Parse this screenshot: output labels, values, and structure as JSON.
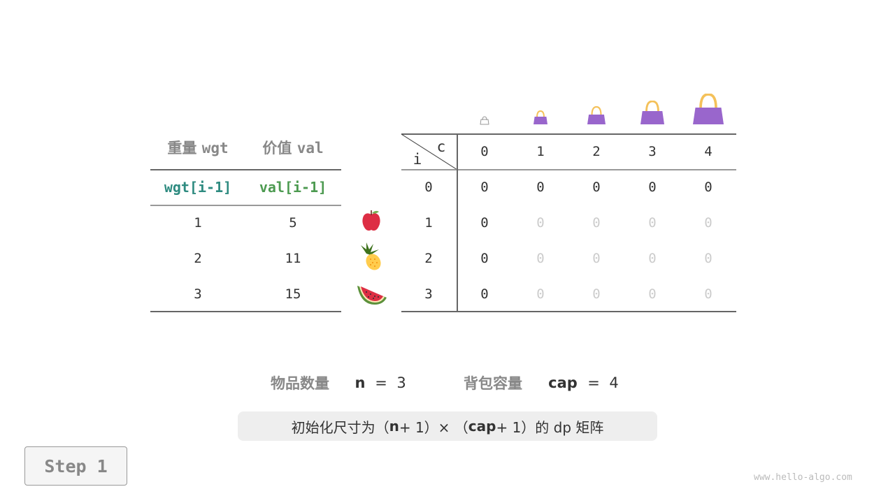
{
  "items_table": {
    "headers": [
      {
        "cn": "重量",
        "code": "wgt"
      },
      {
        "cn": "价值",
        "code": "val"
      }
    ],
    "subheaders": [
      "wgt[i-1]",
      "val[i-1]"
    ],
    "rows": [
      {
        "wgt": "1",
        "val": "5",
        "fruit": "apple-icon"
      },
      {
        "wgt": "2",
        "val": "11",
        "fruit": "pineapple-icon"
      },
      {
        "wgt": "3",
        "val": "15",
        "fruit": "watermelon-icon"
      }
    ],
    "colors": {
      "wgt": "#2e8b80",
      "val": "#4c9a50"
    }
  },
  "dp_table": {
    "corner": {
      "row_label": "i",
      "col_label": "c"
    },
    "col_headers": [
      "0",
      "1",
      "2",
      "3",
      "4"
    ],
    "row_headers": [
      "0",
      "1",
      "2",
      "3"
    ],
    "cells": [
      [
        {
          "v": "0",
          "s": "init"
        },
        {
          "v": "0",
          "s": "init"
        },
        {
          "v": "0",
          "s": "init"
        },
        {
          "v": "0",
          "s": "init"
        },
        {
          "v": "0",
          "s": "init"
        }
      ],
      [
        {
          "v": "0",
          "s": "init"
        },
        {
          "v": "0",
          "s": "empty"
        },
        {
          "v": "0",
          "s": "empty"
        },
        {
          "v": "0",
          "s": "empty"
        },
        {
          "v": "0",
          "s": "empty"
        }
      ],
      [
        {
          "v": "0",
          "s": "init"
        },
        {
          "v": "0",
          "s": "empty"
        },
        {
          "v": "0",
          "s": "empty"
        },
        {
          "v": "0",
          "s": "empty"
        },
        {
          "v": "0",
          "s": "empty"
        }
      ],
      [
        {
          "v": "0",
          "s": "init"
        },
        {
          "v": "0",
          "s": "empty"
        },
        {
          "v": "0",
          "s": "empty"
        },
        {
          "v": "0",
          "s": "empty"
        },
        {
          "v": "0",
          "s": "empty"
        }
      ]
    ],
    "bag_icons": [
      "bag-icon",
      "bag-icon",
      "bag-icon",
      "bag-icon",
      "bag-icon"
    ],
    "bag_color": "#9966cc",
    "handle_color": "#f4c15a"
  },
  "summary": {
    "n_label": "物品数量",
    "n_var": "n",
    "n_eq": "=",
    "n_value": "3",
    "cap_label": "背包容量",
    "cap_var": "cap",
    "cap_eq": "=",
    "cap_value": "4"
  },
  "note": {
    "pre": "初始化尺寸为（",
    "n": "n",
    "mid1": " + 1）× （",
    "cap": "cap",
    "mid2": " + 1）的 dp 矩阵"
  },
  "step_button": "Step 1",
  "watermark": "www.hello-algo.com"
}
